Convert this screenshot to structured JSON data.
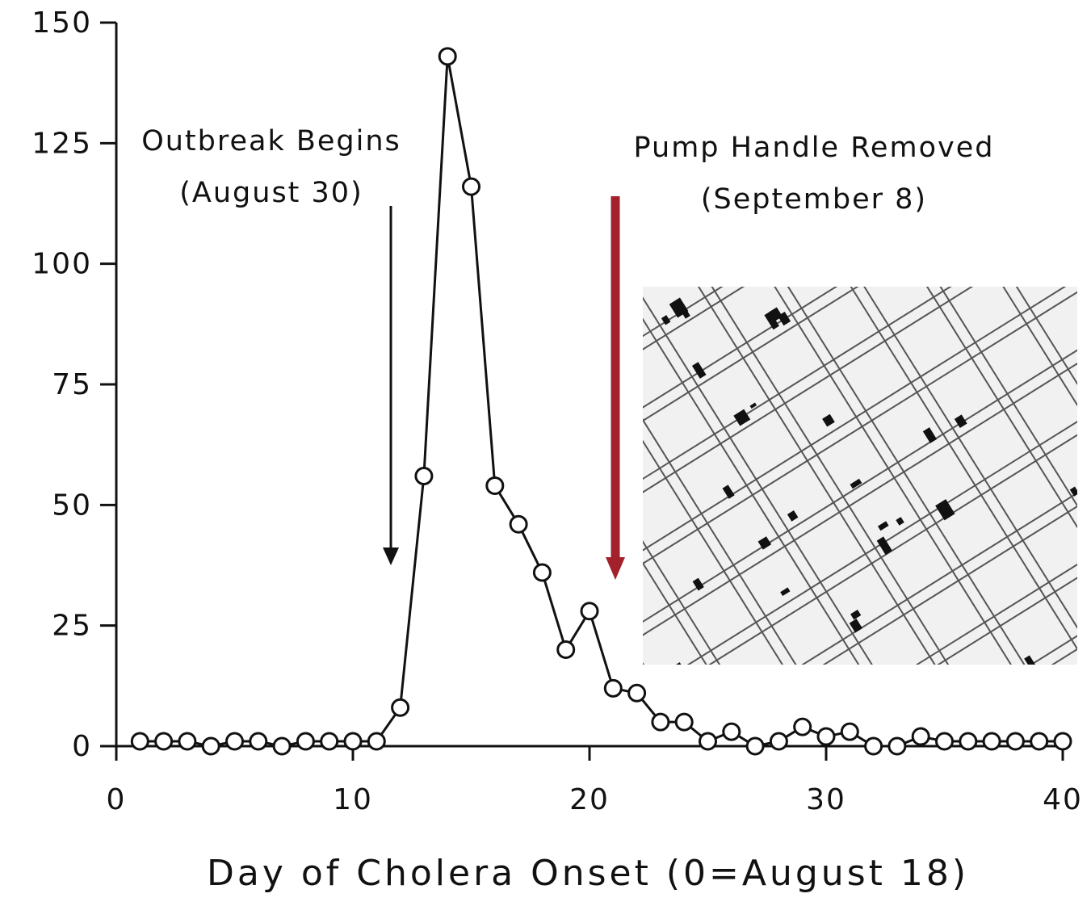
{
  "chart_data": {
    "type": "line",
    "x_label": "Day of Cholera Onset (0=August 18)",
    "x": [
      1,
      2,
      3,
      4,
      5,
      6,
      7,
      8,
      9,
      10,
      11,
      12,
      13,
      14,
      15,
      16,
      17,
      18,
      19,
      20,
      21,
      22,
      23,
      24,
      25,
      26,
      27,
      28,
      29,
      30,
      31,
      32,
      33,
      34,
      35,
      36,
      37,
      38,
      39,
      40
    ],
    "values": [
      1,
      1,
      1,
      0,
      1,
      1,
      0,
      1,
      1,
      1,
      1,
      8,
      56,
      143,
      116,
      54,
      46,
      36,
      20,
      28,
      12,
      11,
      5,
      5,
      1,
      3,
      0,
      1,
      4,
      2,
      3,
      0,
      0,
      2,
      1,
      1,
      1,
      1,
      1,
      1
    ],
    "color": "#111111",
    "xlim": [
      0,
      40
    ],
    "xticks": [
      0,
      10,
      20,
      30,
      40
    ],
    "ylim": [
      0,
      150
    ],
    "yticks": [
      0,
      25,
      50,
      75,
      100,
      125,
      150
    ],
    "grid": false,
    "annotations": [
      "Outbreak Begins",
      "(August 30)",
      "Pump Handle Removed",
      "(September 8)"
    ]
  }
}
